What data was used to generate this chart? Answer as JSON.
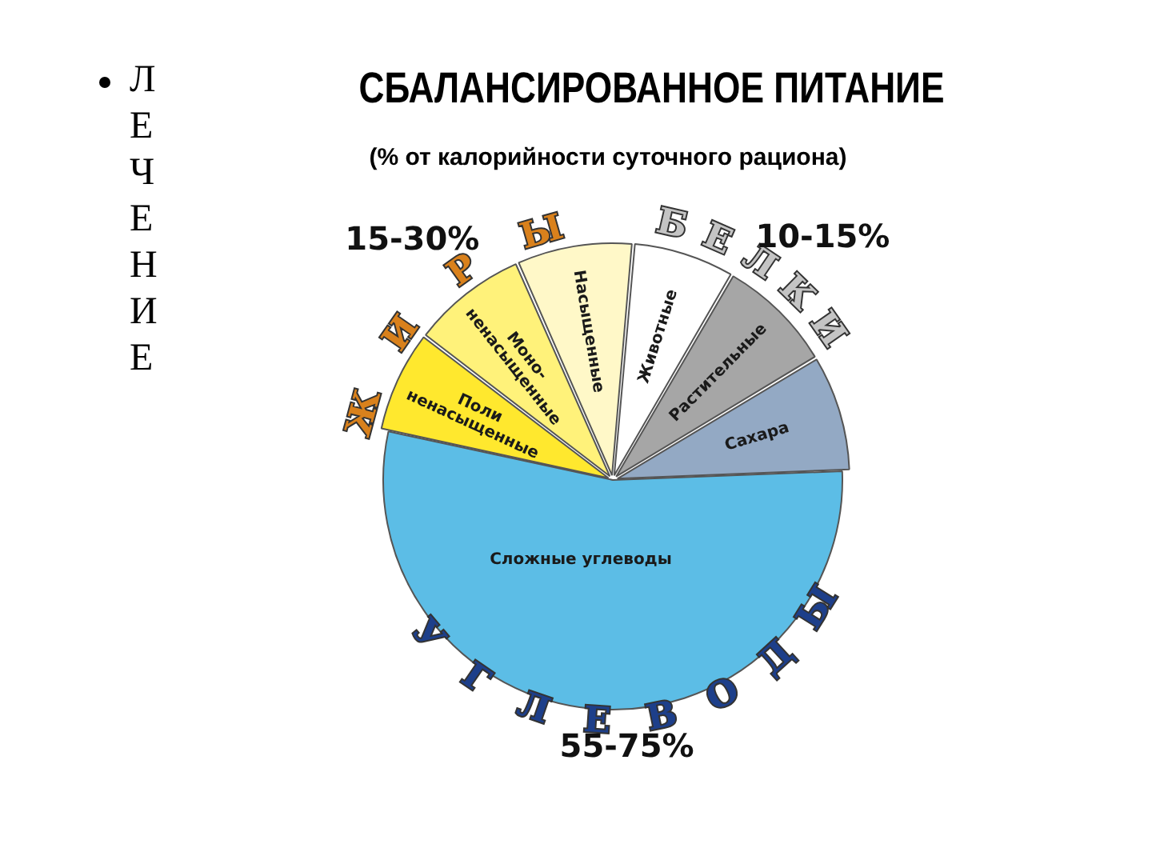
{
  "chart_data": {
    "type": "pie",
    "title": "СБАЛАНСИРОВАННОЕ ПИТАНИЕ",
    "subtitle": "(% от калорийности суточного рациона)",
    "categories": [
      "Животные",
      "Растительные",
      "Сахара",
      "Сложные углеводы",
      "Поли ненасыщенные",
      "Моно-ненасыщенные",
      "Насыщенные"
    ],
    "values": [
      7,
      8,
      8,
      54,
      7,
      8,
      8
    ],
    "colors": [
      "#ffffff",
      "#a6a6a6",
      "#93a9c4",
      "#5cbde6",
      "#ffe82e",
      "#fff27a",
      "#fff8c8"
    ],
    "annotations": [
      "Ж И Р Ы",
      "15-30%",
      "Б Е Л К И",
      "10-15%",
      "У Г Л Е В О Д Ы",
      "55-75%",
      "ЛЕЧЕНИЕ"
    ],
    "legend": false
  }
}
